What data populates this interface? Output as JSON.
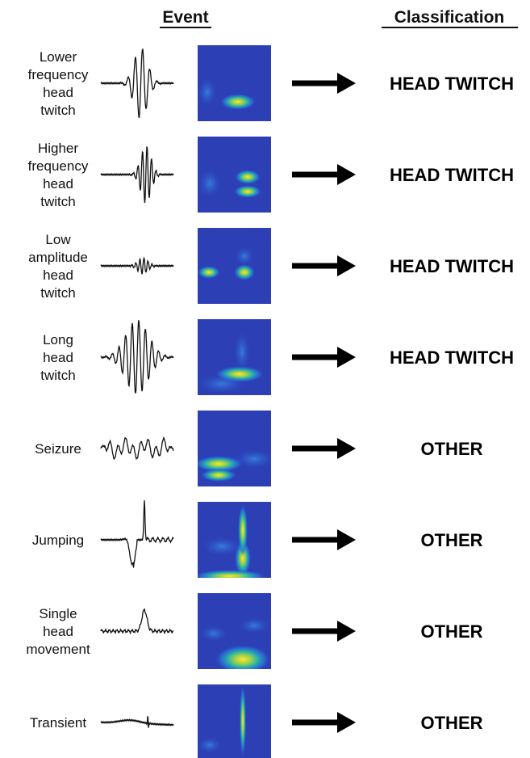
{
  "header": {
    "event": "Event",
    "classification": "Classification"
  },
  "rows": [
    {
      "label_lines": [
        "Lower",
        "frequency",
        "head",
        "twitch"
      ],
      "classification": "HEAD TWITCH"
    },
    {
      "label_lines": [
        "Higher",
        "frequency",
        "head",
        "twitch"
      ],
      "classification": "HEAD TWITCH"
    },
    {
      "label_lines": [
        "Low",
        "amplitude",
        "head",
        "twitch"
      ],
      "classification": "HEAD TWITCH"
    },
    {
      "label_lines": [
        "Long",
        "head",
        "twitch"
      ],
      "classification": "HEAD TWITCH"
    },
    {
      "label_lines": [
        "Seizure"
      ],
      "classification": "OTHER"
    },
    {
      "label_lines": [
        "Jumping"
      ],
      "classification": "OTHER"
    },
    {
      "label_lines": [
        "Single",
        "head",
        "movement"
      ],
      "classification": "OTHER"
    },
    {
      "label_lines": [
        "Transient"
      ],
      "classification": "OTHER"
    }
  ]
}
